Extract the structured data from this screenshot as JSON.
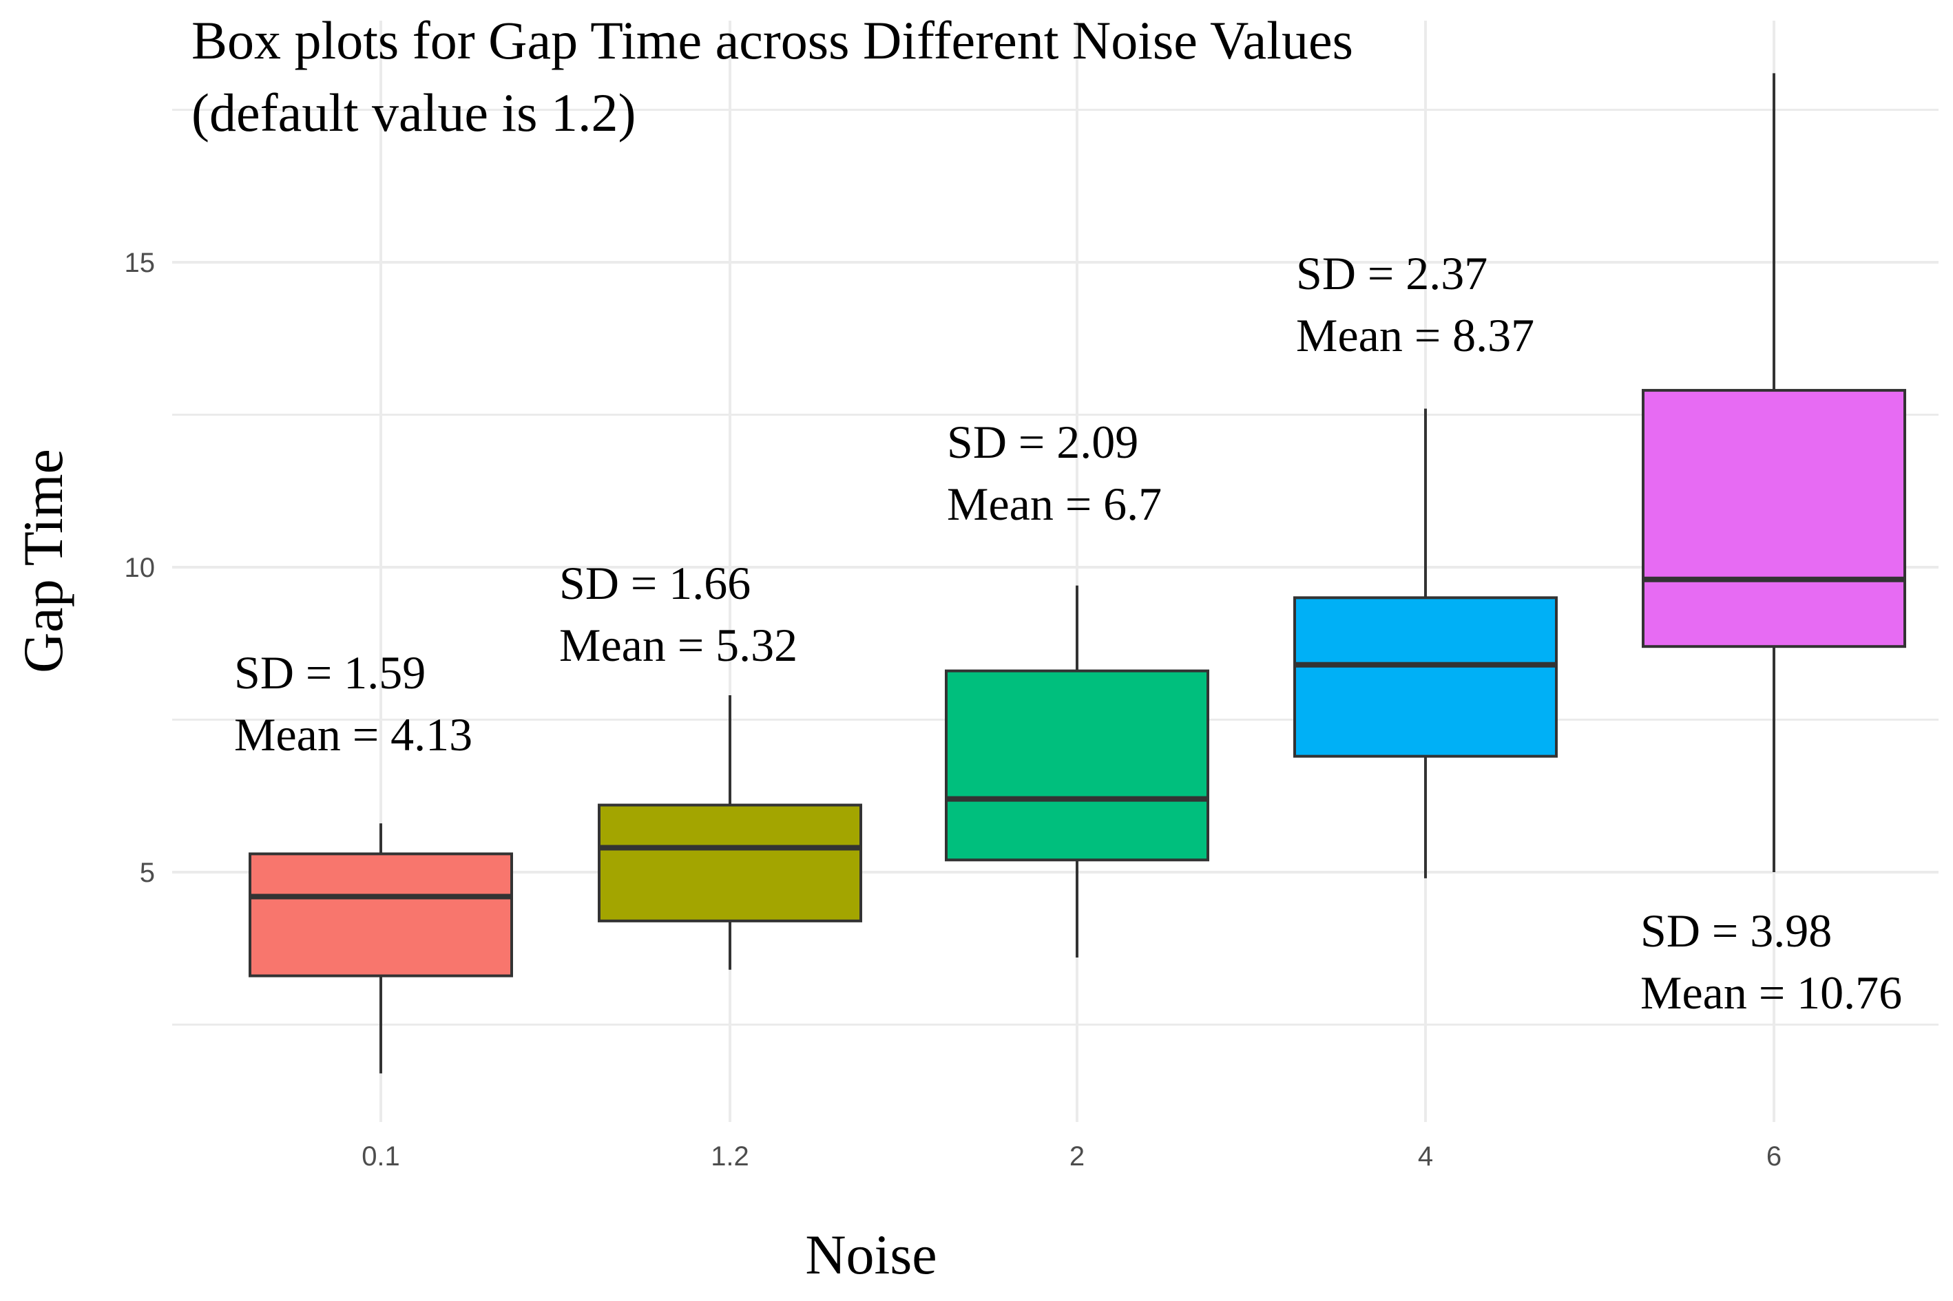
{
  "chart_data": {
    "type": "boxplot",
    "title_lines": [
      "Box plots for Gap Time across Different Noise Values",
      "(default value is 1.2)"
    ],
    "xlabel": "Noise",
    "ylabel": "Gap Time",
    "categories": [
      "0.1",
      "1.2",
      "2",
      "4",
      "6"
    ],
    "ylim": [
      0.5,
      19
    ],
    "y_ticks": [
      5,
      10,
      15
    ],
    "y_tick_labels": [
      "5",
      "10",
      "15"
    ],
    "grid": true,
    "legend": "none",
    "boxes": [
      {
        "category": "0.1",
        "whisker_low": 1.7,
        "q1": 3.3,
        "median": 4.6,
        "q3": 5.3,
        "whisker_high": 5.8,
        "color": "#F8766D",
        "annotation": [
          "SD = 1.59",
          "Mean = 4.13"
        ]
      },
      {
        "category": "1.2",
        "whisker_low": 3.4,
        "q1": 4.2,
        "median": 5.4,
        "q3": 6.1,
        "whisker_high": 7.9,
        "color": "#A3A500",
        "annotation": [
          "SD = 1.66",
          "Mean = 5.32"
        ]
      },
      {
        "category": "2",
        "whisker_low": 3.6,
        "q1": 5.2,
        "median": 6.2,
        "q3": 8.3,
        "whisker_high": 9.7,
        "color": "#00BF7D",
        "annotation": [
          "SD = 2.09",
          "Mean = 6.7"
        ]
      },
      {
        "category": "4",
        "whisker_low": 4.9,
        "q1": 6.9,
        "median": 8.4,
        "q3": 9.5,
        "whisker_high": 12.6,
        "color": "#00B0F6",
        "annotation": [
          "SD = 2.37",
          "Mean = 8.37"
        ]
      },
      {
        "category": "6",
        "whisker_low": 5.0,
        "q1": 8.7,
        "median": 9.8,
        "q3": 12.9,
        "whisker_high": 18.1,
        "color": "#E76BF3",
        "annotation": [
          "SD = 3.98",
          "Mean = 10.76"
        ]
      }
    ]
  }
}
